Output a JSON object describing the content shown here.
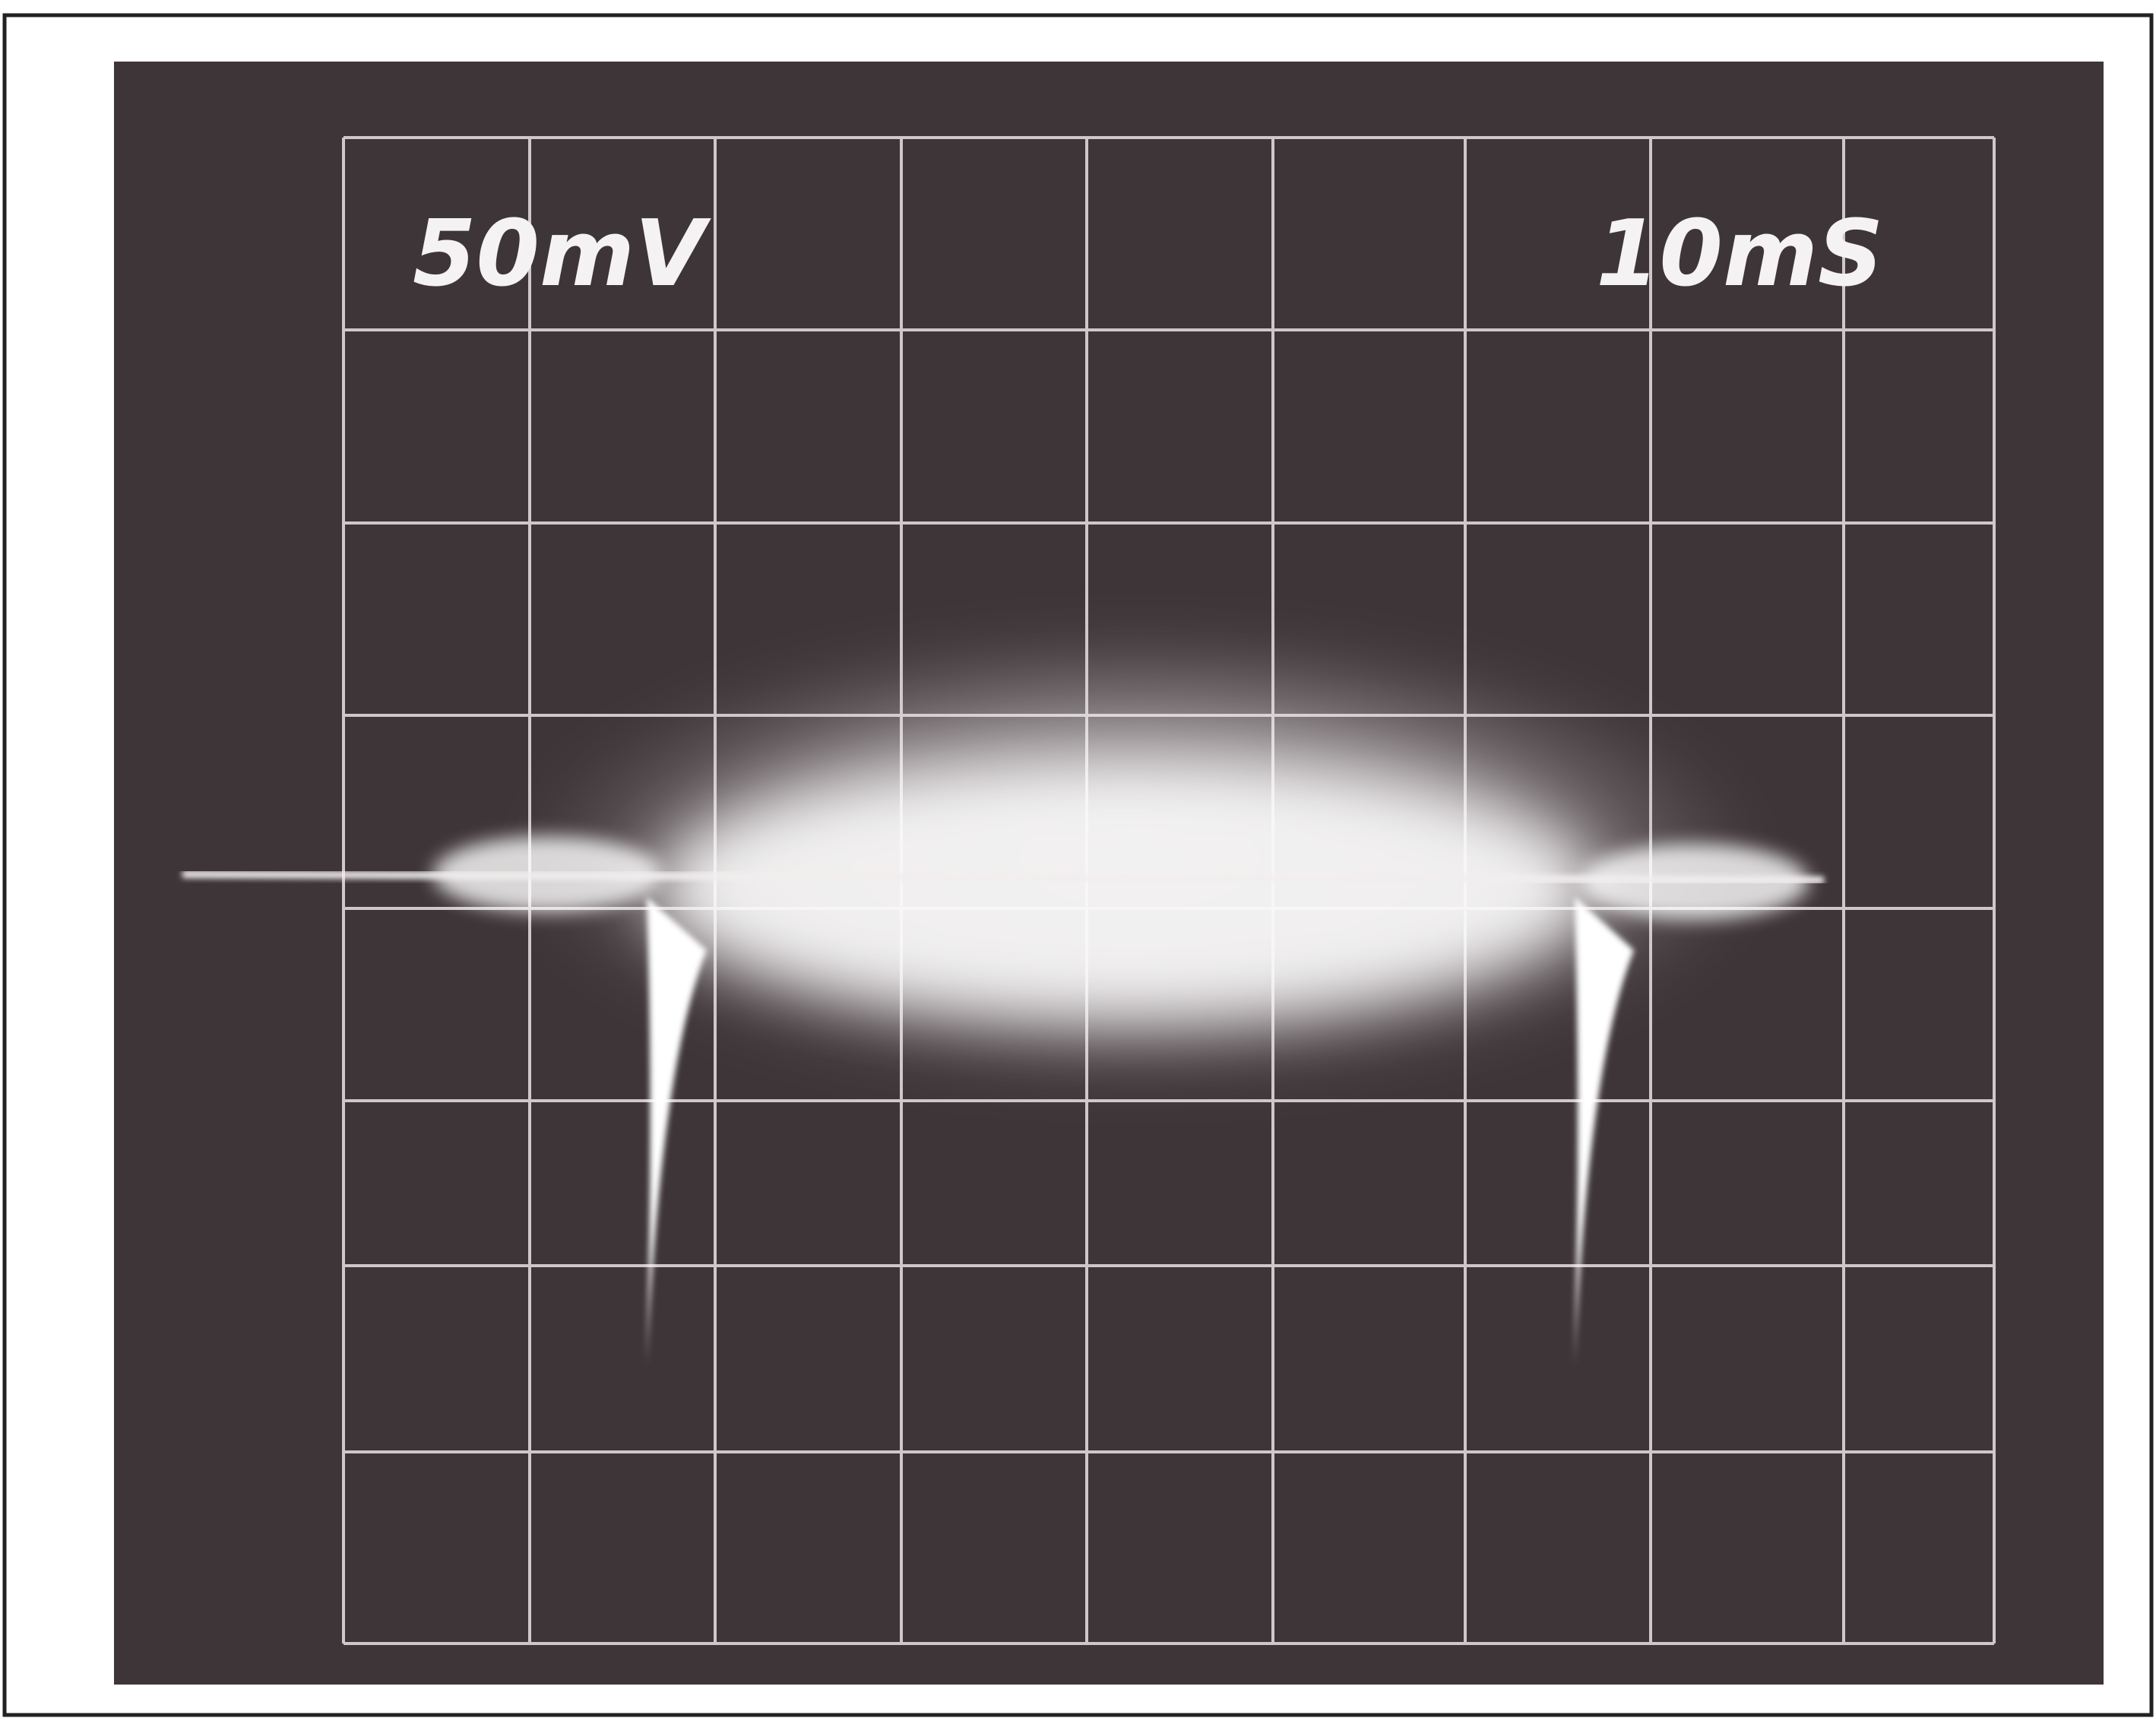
{
  "screen": {
    "volts_per_div": "50mV",
    "time_per_div": "10mS"
  }
}
